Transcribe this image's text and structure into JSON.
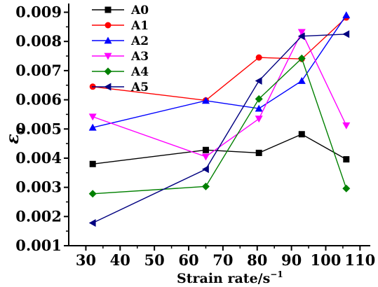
{
  "chart_data": {
    "type": "line",
    "xlabel": "Strain rate/s",
    "xlabel_sup": "−1",
    "ylabel_symbol": "ε",
    "ylabel_sub": "p",
    "xlim": [
      25,
      113
    ],
    "ylim": [
      0.001,
      0.0093
    ],
    "xticks": [
      30,
      40,
      50,
      60,
      70,
      80,
      90,
      100,
      110
    ],
    "xtick_labels": [
      "30",
      "40",
      "50",
      "60",
      "70",
      "80",
      "90",
      "100",
      "110"
    ],
    "yticks": [
      0.001,
      0.002,
      0.003,
      0.004,
      0.005,
      0.006,
      0.007,
      0.008,
      0.009
    ],
    "ytick_labels": [
      "0.001",
      "0.002",
      "0.003",
      "0.004",
      "0.005",
      "0.006",
      "0.007",
      "0.008",
      "0.009"
    ],
    "x": [
      32,
      65,
      80.5,
      93,
      106
    ],
    "legend_position": "top-left",
    "grid": false,
    "series": [
      {
        "name": "A0",
        "color": "#000000",
        "marker": "square",
        "values": [
          0.0038,
          0.00428,
          0.00418,
          0.00482,
          0.00396
        ]
      },
      {
        "name": "A1",
        "color": "#ff0000",
        "marker": "circle",
        "values": [
          0.00645,
          0.00598,
          0.00745,
          0.0074,
          0.00882
        ]
      },
      {
        "name": "A2",
        "color": "#0000ff",
        "marker": "triangle-up",
        "values": [
          0.00505,
          0.00597,
          0.0057,
          0.00665,
          0.0089
        ]
      },
      {
        "name": "A3",
        "color": "#ff00ff",
        "marker": "triangle-down",
        "values": [
          0.00542,
          0.00405,
          0.00535,
          0.00832,
          0.00512
        ]
      },
      {
        "name": "A4",
        "color": "#008000",
        "marker": "diamond",
        "values": [
          0.00278,
          0.00303,
          0.00603,
          0.00742,
          0.00296
        ]
      },
      {
        "name": "A5",
        "color": "#000080",
        "marker": "triangle-left",
        "values": [
          0.00178,
          0.00362,
          0.00665,
          0.00818,
          0.00825
        ]
      }
    ]
  }
}
